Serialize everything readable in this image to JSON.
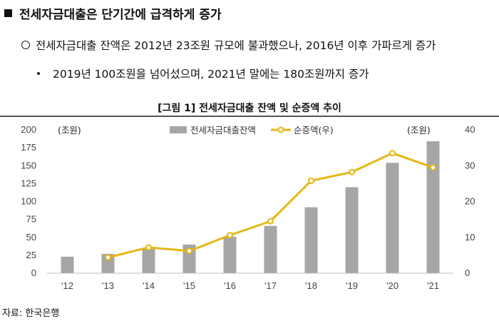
{
  "header": {
    "heading": "전세자금대출은 단기간에 급격하게 증가",
    "bullet1": "전세자금대출 잔액은 2012년 23조원 규모에 불과했으나, 2016년 이후 가파르게 증가",
    "bullet2": "2019년 100조원을 넘어섰으며, 2021년 말에는 180조원까지 증가"
  },
  "figure": {
    "title": "[그림 1] 전세자금대출 잔액 및 순증액 추이",
    "source": "자료: 한국은행"
  },
  "chart_data": {
    "type": "bar",
    "categories": [
      "'12",
      "'13",
      "'14",
      "'15",
      "'16",
      "'17",
      "'18",
      "'19",
      "'20",
      "'21"
    ],
    "series": [
      {
        "name": "전세자금대출잔액",
        "type": "bar",
        "axis": "left",
        "color": "#a6a6a6",
        "values": [
          23,
          27,
          34,
          40,
          51,
          66,
          92,
          120,
          154,
          184
        ]
      },
      {
        "name": "순증액(우)",
        "type": "line",
        "axis": "right",
        "color": "#e6b714",
        "values": [
          null,
          4.4,
          7.2,
          6.2,
          10.6,
          14.5,
          25.8,
          28.2,
          33.5,
          29.5
        ]
      }
    ],
    "left_unit_label": "(조원)",
    "right_unit_label": "(조원)",
    "y_left_lim": [
      0,
      200
    ],
    "y_left_ticks": [
      0,
      25,
      50,
      75,
      100,
      125,
      150,
      175,
      200
    ],
    "y_right_lim": [
      0,
      40
    ],
    "y_right_ticks": [
      0,
      10,
      20,
      30,
      40
    ],
    "grid": false,
    "legend_position": "top-center"
  }
}
